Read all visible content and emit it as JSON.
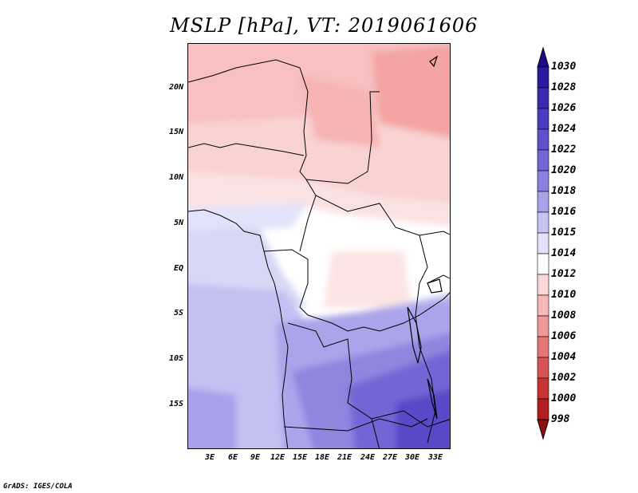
{
  "title": "MSLP [hPa], VT: 2019061606",
  "credit": "GrADS: IGES/COLA",
  "map": {
    "lat_labels": [
      "20N",
      "15N",
      "10N",
      "5N",
      "EQ",
      "5S",
      "10S",
      "15S"
    ],
    "lon_labels": [
      "3E",
      "6E",
      "9E",
      "12E",
      "15E",
      "18E",
      "21E",
      "24E",
      "27E",
      "30E",
      "33E"
    ]
  },
  "colorbar": {
    "levels": [
      "1030",
      "1028",
      "1026",
      "1024",
      "1022",
      "1020",
      "1018",
      "1016",
      "1015",
      "1014",
      "1012",
      "1010",
      "1008",
      "1006",
      "1004",
      "1002",
      "1000",
      "998"
    ],
    "colors": [
      "#1e0b8a",
      "#2a1a9e",
      "#3a2ab0",
      "#4a3cbe",
      "#5e52cc",
      "#7266d6",
      "#8a80e0",
      "#aaa2ea",
      "#c8c4f2",
      "#e4e2fa",
      "#ffffff",
      "#fbd8d8",
      "#f6b8b8",
      "#ee9898",
      "#e47676",
      "#d85454",
      "#c83434",
      "#b01e1e",
      "#901010"
    ]
  }
}
